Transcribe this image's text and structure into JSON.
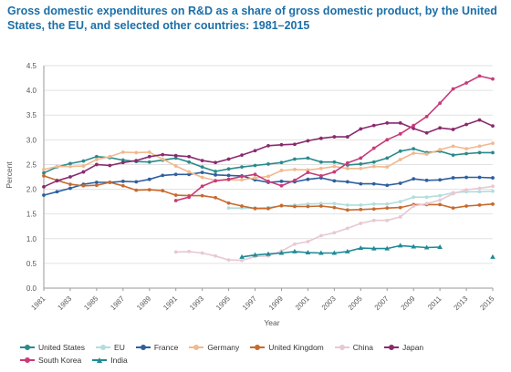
{
  "chart_data": {
    "type": "line",
    "title": "Gross domestic expenditures on R&D as a share of gross domestic product, by the United States, the EU, and selected other countries: 1981–2015",
    "xlabel": "Year",
    "ylabel": "Percent",
    "xlim": [
      1981,
      2015
    ],
    "ylim": [
      0,
      4.5
    ],
    "yticks": [
      "0.0",
      "0.5",
      "1.0",
      "1.5",
      "2.0",
      "2.5",
      "3.0",
      "3.5",
      "4.0",
      "4.5"
    ],
    "xticks": [
      "1981",
      "1983",
      "1985",
      "1987",
      "1989",
      "1991",
      "1993",
      "1995",
      "1997",
      "1999",
      "2001",
      "2003",
      "2005",
      "2007",
      "2009",
      "2011",
      "2013",
      "2015"
    ],
    "grid": true,
    "legend_position": "bottom",
    "series": [
      {
        "name": "United States",
        "color": "#2a8a8a",
        "marker": "circle",
        "x": [
          1981,
          1982,
          1983,
          1984,
          1985,
          1986,
          1987,
          1988,
          1989,
          1990,
          1991,
          1992,
          1993,
          1994,
          1995,
          1996,
          1997,
          1998,
          1999,
          2000,
          2001,
          2002,
          2003,
          2004,
          2005,
          2006,
          2007,
          2008,
          2009,
          2010,
          2011,
          2012,
          2013,
          2014,
          2015
        ],
        "y": [
          2.33,
          2.45,
          2.52,
          2.57,
          2.66,
          2.64,
          2.59,
          2.56,
          2.55,
          2.59,
          2.63,
          2.55,
          2.45,
          2.36,
          2.41,
          2.45,
          2.48,
          2.51,
          2.54,
          2.61,
          2.63,
          2.55,
          2.55,
          2.49,
          2.51,
          2.55,
          2.63,
          2.77,
          2.82,
          2.74,
          2.77,
          2.69,
          2.72,
          2.74,
          2.74
        ]
      },
      {
        "name": "EU",
        "color": "#b4dcdc",
        "marker": "circle",
        "x": [
          1995,
          1996,
          1997,
          1998,
          1999,
          2000,
          2001,
          2002,
          2003,
          2004,
          2005,
          2006,
          2007,
          2008,
          2009,
          2010,
          2011,
          2012,
          2013,
          2014,
          2015
        ],
        "y": [
          1.62,
          1.62,
          1.62,
          1.63,
          1.66,
          1.68,
          1.7,
          1.71,
          1.71,
          1.68,
          1.68,
          1.7,
          1.7,
          1.75,
          1.84,
          1.84,
          1.87,
          1.93,
          1.95,
          1.95,
          1.96
        ]
      },
      {
        "name": "France",
        "color": "#2e5f9e",
        "marker": "circle",
        "x": [
          1981,
          1982,
          1983,
          1984,
          1985,
          1986,
          1987,
          1988,
          1989,
          1990,
          1991,
          1992,
          1993,
          1994,
          1995,
          1996,
          1997,
          1998,
          1999,
          2000,
          2001,
          2002,
          2003,
          2004,
          2005,
          2006,
          2007,
          2008,
          2009,
          2010,
          2011,
          2012,
          2013,
          2014,
          2015
        ],
        "y": [
          1.88,
          1.95,
          2.02,
          2.1,
          2.14,
          2.14,
          2.16,
          2.15,
          2.2,
          2.28,
          2.3,
          2.3,
          2.34,
          2.29,
          2.28,
          2.27,
          2.19,
          2.14,
          2.16,
          2.15,
          2.2,
          2.23,
          2.17,
          2.15,
          2.11,
          2.11,
          2.08,
          2.12,
          2.21,
          2.18,
          2.19,
          2.23,
          2.24,
          2.24,
          2.23
        ]
      },
      {
        "name": "Germany",
        "color": "#f2b98e",
        "marker": "circle",
        "x": [
          1981,
          1982,
          1983,
          1984,
          1985,
          1986,
          1987,
          1988,
          1989,
          1990,
          1991,
          1992,
          1993,
          1994,
          1995,
          1996,
          1997,
          1998,
          1999,
          2000,
          2001,
          2002,
          2003,
          2004,
          2005,
          2006,
          2007,
          2008,
          2009,
          2010,
          2011,
          2012,
          2013,
          2014,
          2015
        ],
        "y": [
          2.4,
          2.46,
          2.46,
          2.47,
          2.6,
          2.66,
          2.75,
          2.74,
          2.75,
          2.61,
          2.47,
          2.35,
          2.24,
          2.18,
          2.19,
          2.19,
          2.23,
          2.26,
          2.38,
          2.4,
          2.39,
          2.42,
          2.46,
          2.42,
          2.42,
          2.46,
          2.45,
          2.6,
          2.73,
          2.71,
          2.8,
          2.87,
          2.82,
          2.87,
          2.93
        ]
      },
      {
        "name": "United Kingdom",
        "color": "#c86a2e",
        "marker": "circle",
        "x": [
          1981,
          1982,
          1983,
          1984,
          1985,
          1986,
          1987,
          1988,
          1989,
          1990,
          1991,
          1992,
          1993,
          1994,
          1995,
          1996,
          1997,
          1998,
          1999,
          2000,
          2001,
          2002,
          2003,
          2004,
          2005,
          2006,
          2007,
          2008,
          2009,
          2010,
          2011,
          2012,
          2013,
          2014,
          2015
        ],
        "y": [
          2.27,
          2.18,
          2.1,
          2.07,
          2.08,
          2.14,
          2.07,
          1.98,
          1.99,
          1.97,
          1.88,
          1.87,
          1.87,
          1.83,
          1.72,
          1.66,
          1.61,
          1.61,
          1.67,
          1.65,
          1.65,
          1.66,
          1.63,
          1.58,
          1.59,
          1.6,
          1.62,
          1.63,
          1.69,
          1.69,
          1.69,
          1.62,
          1.66,
          1.68,
          1.7
        ]
      },
      {
        "name": "China",
        "color": "#e8c8d2",
        "marker": "circle",
        "x": [
          1991,
          1992,
          1993,
          1994,
          1995,
          1996,
          1997,
          1998,
          1999,
          2000,
          2001,
          2002,
          2003,
          2004,
          2005,
          2006,
          2007,
          2008,
          2009,
          2010,
          2011,
          2012,
          2013,
          2014,
          2015
        ],
        "y": [
          0.73,
          0.74,
          0.71,
          0.65,
          0.57,
          0.56,
          0.64,
          0.65,
          0.75,
          0.89,
          0.94,
          1.06,
          1.12,
          1.21,
          1.31,
          1.37,
          1.37,
          1.44,
          1.66,
          1.71,
          1.78,
          1.91,
          1.99,
          2.02,
          2.06
        ]
      },
      {
        "name": "Japan",
        "color": "#8a2a6e",
        "marker": "circle",
        "x": [
          1981,
          1982,
          1983,
          1984,
          1985,
          1986,
          1987,
          1988,
          1989,
          1990,
          1991,
          1992,
          1993,
          1994,
          1995,
          1996,
          1997,
          1998,
          1999,
          2000,
          2001,
          2002,
          2003,
          2004,
          2005,
          2006,
          2007,
          2008,
          2009,
          2010,
          2011,
          2012,
          2013,
          2014,
          2015
        ],
        "y": [
          2.05,
          2.17,
          2.25,
          2.35,
          2.5,
          2.48,
          2.54,
          2.58,
          2.66,
          2.7,
          2.68,
          2.66,
          2.58,
          2.54,
          2.61,
          2.69,
          2.78,
          2.88,
          2.9,
          2.91,
          2.98,
          3.03,
          3.06,
          3.06,
          3.22,
          3.29,
          3.34,
          3.34,
          3.23,
          3.14,
          3.24,
          3.21,
          3.31,
          3.4,
          3.28
        ]
      },
      {
        "name": "South Korea",
        "color": "#c83a78",
        "marker": "circle",
        "x": [
          1991,
          1992,
          1993,
          1994,
          1995,
          1996,
          1997,
          1998,
          1999,
          2000,
          2001,
          2002,
          2003,
          2004,
          2005,
          2006,
          2007,
          2008,
          2009,
          2010,
          2011,
          2012,
          2013,
          2014,
          2015
        ],
        "y": [
          1.77,
          1.84,
          2.06,
          2.17,
          2.2,
          2.26,
          2.3,
          2.16,
          2.07,
          2.18,
          2.34,
          2.27,
          2.35,
          2.53,
          2.63,
          2.83,
          3.0,
          3.12,
          3.29,
          3.47,
          3.74,
          4.03,
          4.15,
          4.29,
          4.23
        ]
      },
      {
        "name": "India",
        "color": "#1f8a96",
        "marker": "triangle",
        "x": [
          1996,
          1997,
          1998,
          1999,
          2000,
          2001,
          2002,
          2003,
          2004,
          2005,
          2006,
          2007,
          2008,
          2009,
          2010,
          2011,
          null,
          2015
        ],
        "y": [
          0.63,
          0.67,
          0.69,
          0.71,
          0.74,
          0.72,
          0.71,
          0.71,
          0.74,
          0.81,
          0.8,
          0.8,
          0.86,
          0.84,
          0.82,
          0.83,
          null,
          0.63
        ]
      }
    ]
  }
}
